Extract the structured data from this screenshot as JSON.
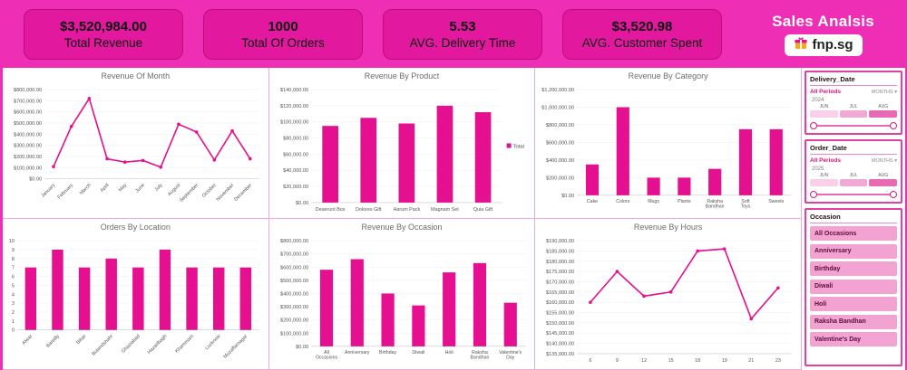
{
  "header": {
    "title": "Sales Analsis",
    "logo": {
      "text": "fnp.sg"
    },
    "kpis": [
      {
        "value": "$3,520,984.00",
        "label": "Total Revenue"
      },
      {
        "value": "1000",
        "label": "Total Of Orders"
      },
      {
        "value": "5.53",
        "label": "AVG. Delivery Time"
      },
      {
        "value": "$3,520.98",
        "label": "AVG. Customer Spent"
      }
    ]
  },
  "chart_data": [
    {
      "type": "line",
      "title": "Revenue Of Month",
      "categories": [
        "January",
        "February",
        "March",
        "April",
        "May",
        "June",
        "July",
        "August",
        "September",
        "October",
        "November",
        "December"
      ],
      "values": [
        110000,
        470000,
        720000,
        180000,
        150000,
        165000,
        105000,
        490000,
        420000,
        170000,
        430000,
        180000
      ],
      "ylim": [
        0,
        800000
      ],
      "ystep": 100000,
      "yfmt": "usd",
      "rotate": true,
      "grid": true,
      "legend": ""
    },
    {
      "type": "bar",
      "title": "Revenue By Product",
      "categories": [
        "Deserunt Box",
        "Dolores Gift",
        "Harum Pack",
        "Magnam Set",
        "Quia Gift"
      ],
      "values": [
        95000,
        105000,
        98000,
        120000,
        112000
      ],
      "ylim": [
        0,
        140000
      ],
      "ystep": 20000,
      "yfmt": "usd",
      "legend": "Total",
      "grid": true
    },
    {
      "type": "bar",
      "title": "Revenue By Category",
      "categories": [
        "Cake",
        "Colors",
        "Mugs",
        "Plants",
        "Raksha Bandhan",
        "Soft Toys",
        "Sweets"
      ],
      "values": [
        350000,
        1000000,
        200000,
        200000,
        300000,
        750000,
        750000
      ],
      "ylim": [
        0,
        1200000
      ],
      "ystep": 200000,
      "yfmt": "usd",
      "wrap": true,
      "grid": true,
      "legend": ""
    },
    {
      "type": "bar",
      "title": "Orders By Location",
      "categories": [
        "Alwar",
        "Bareilly",
        "Bihar",
        "Bulandshahr",
        "Ghaziabad",
        "Hazaribagh",
        "Khammam",
        "Lucknow",
        "Muzaffarnagar"
      ],
      "values": [
        7,
        9,
        7,
        8,
        7,
        9,
        7,
        7,
        7
      ],
      "ylim": [
        0,
        10
      ],
      "ystep": 1,
      "yfmt": "int",
      "rotate": true,
      "grid": true,
      "legend": ""
    },
    {
      "type": "bar",
      "title": "Revenue By Occasion",
      "categories": [
        "All Occasions",
        "Anniversary",
        "Birthday",
        "Diwali",
        "Holi",
        "Raksha Bandhan",
        "Valentine's Day"
      ],
      "values": [
        580000,
        660000,
        400000,
        310000,
        560000,
        630000,
        330000
      ],
      "ylim": [
        0,
        800000
      ],
      "ystep": 100000,
      "yfmt": "usd",
      "wrap": true,
      "grid": true,
      "legend": ""
    },
    {
      "type": "line",
      "title": "Revenue By Hours",
      "categories": [
        "6",
        "9",
        "12",
        "15",
        "18",
        "19",
        "21",
        "23"
      ],
      "values": [
        160000,
        175000,
        163000,
        165000,
        185000,
        186000,
        152000,
        167000
      ],
      "ylim": [
        135000,
        190000
      ],
      "ystep": 5000,
      "yfmt": "usd",
      "grid": true,
      "legend": ""
    }
  ],
  "slicers": {
    "delivery_date": {
      "title": "Delivery_Date",
      "period_label": "All Periods",
      "granularity": "MONTHS",
      "year": "2024",
      "months": [
        "JUN",
        "JUL",
        "AUG"
      ]
    },
    "order_date": {
      "title": "Order_Date",
      "period_label": "All Periods",
      "granularity": "MONTHS",
      "year": "2025",
      "months": [
        "JUN",
        "JUL",
        "AUG"
      ]
    },
    "occasion": {
      "title": "Occasion",
      "items": [
        "All Occasions",
        "Anniversary",
        "Birthday",
        "Diwali",
        "Holi",
        "Raksha Bandhan",
        "Valentine's Day"
      ]
    }
  },
  "icons": {
    "chevron_down": "▾"
  },
  "colors": {
    "accent": "#e5108f",
    "header_bg": "#ee2eb4",
    "card_bg": "#e2189e",
    "slicer_border": "#e0419f",
    "selected_row": "#f2a3d1"
  }
}
